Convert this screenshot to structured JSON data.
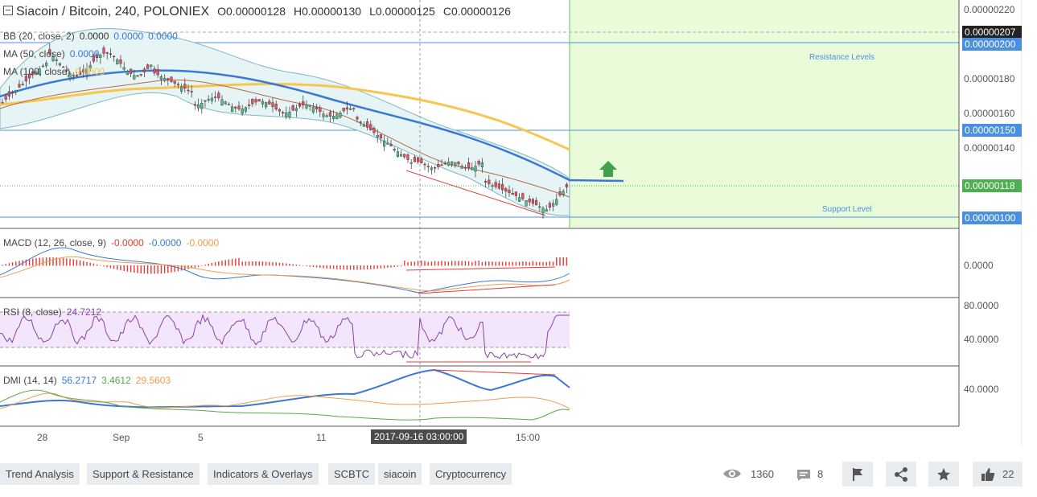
{
  "header": {
    "symbol": "Siacoin / Bitcoin, 240, POLONIEX",
    "open": "O0.00000128",
    "high": "H0.00000130",
    "low": "L0.00000125",
    "close": "C0.00000126"
  },
  "legends": {
    "bb": {
      "label": "BB (20, close, 2)",
      "v1": "0.0000",
      "v2": "0.0000",
      "v3": "0.0000"
    },
    "ma50": {
      "label": "MA (50, close)",
      "v1": "0.0000"
    },
    "ma100": {
      "label": "MA (100, close)",
      "v1": "0.0000"
    },
    "macd": {
      "label": "MACD (12, 26, close, 9)",
      "v1": "-0.0000",
      "v2": "-0.0000",
      "v3": "-0.0000"
    },
    "rsi": {
      "label": "RSI (8, close)",
      "v1": "24.7212"
    },
    "dmi": {
      "label": "DMI (14, 14)",
      "v1": "56.2717",
      "v2": "3.4612",
      "v3": "29.5603"
    }
  },
  "price_axis": {
    "ticks": [
      "0.00000220",
      "0.00000180",
      "0.00000160",
      "0.00000140"
    ],
    "tags": [
      {
        "text": "0.00000207",
        "color": "#222222"
      },
      {
        "text": "0.00000200",
        "color": "#4a90e2"
      },
      {
        "text": "0.00000150",
        "color": "#4a90e2"
      },
      {
        "text": "0.00000118",
        "color": "#4caf50"
      },
      {
        "text": "0.00000100",
        "color": "#4a90e2"
      }
    ]
  },
  "macd_axis": {
    "ticks": [
      "0.0000"
    ]
  },
  "rsi_axis": {
    "ticks": [
      "80.0000",
      "40.0000"
    ]
  },
  "dmi_axis": {
    "ticks": [
      "40.0000"
    ]
  },
  "time_axis": {
    "ticks": [
      "28",
      "Sep",
      "5",
      "11",
      "15:00"
    ],
    "crosshair": "2017-09-16 03:00:00"
  },
  "annotations": {
    "resistance": "Resistance Levels",
    "support": "Support Level"
  },
  "tags": [
    "Trend Analysis",
    "Support & Resistance",
    "Indicators & Overlays",
    "SCBTC",
    "siacoin",
    "Cryptocurrency"
  ],
  "stats": {
    "views": "1360",
    "comments": "8",
    "likes": "22"
  },
  "icons": [
    "eye-icon",
    "comment-icon",
    "flag-icon",
    "share-icon",
    "star-icon",
    "thumbs-up-icon"
  ],
  "colors": {
    "bull": "#53b987",
    "bear": "#eb4d5c",
    "ma50": "#3a78d8",
    "ma100": "#f6c64e",
    "bb_fill": "#e6f4f5",
    "zone": "#e9fbd9",
    "rsi_fill": "#f3e6fb"
  }
}
